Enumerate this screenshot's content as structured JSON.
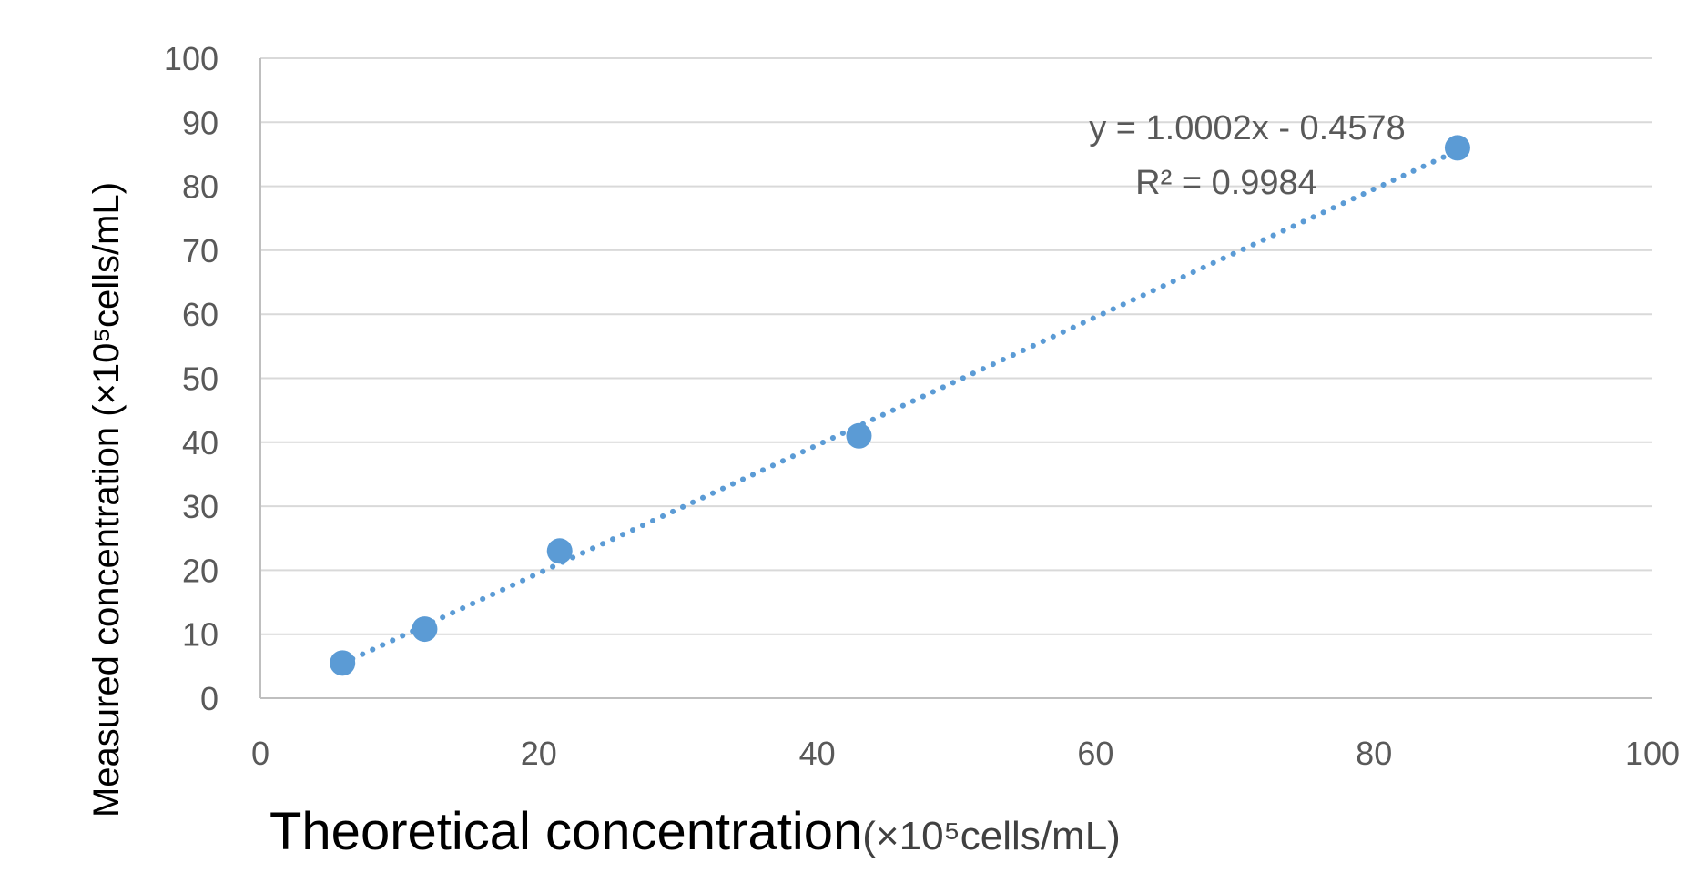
{
  "chart_data": {
    "type": "scatter",
    "title": "",
    "xlabel": "Theoretical concentration",
    "xlabel_unit": "(×10⁵cells/mL)",
    "ylabel": "Measured concentration (×10⁵cells/mL)",
    "xlim": [
      0,
      100
    ],
    "ylim": [
      0,
      100
    ],
    "x_ticks": [
      "0",
      "20",
      "40",
      "60",
      "80",
      "100"
    ],
    "y_ticks": [
      "0",
      "10",
      "20",
      "30",
      "40",
      "50",
      "60",
      "70",
      "80",
      "90",
      "100"
    ],
    "grid": "horizontal",
    "legend": "none",
    "series": [
      {
        "points": [
          {
            "x": 5.9,
            "y": 5.5
          },
          {
            "x": 11.8,
            "y": 10.8
          },
          {
            "x": 21.5,
            "y": 23.0
          },
          {
            "x": 43.0,
            "y": 41.0
          },
          {
            "x": 86.0,
            "y": 86.0
          }
        ],
        "color": "#5b9bd5"
      }
    ],
    "trendline": {
      "type": "linear",
      "slope": 1.0002,
      "intercept": -0.4578,
      "x_range": [
        5.9,
        86.0
      ],
      "style": "dotted",
      "color": "#5b9bd5",
      "equation_label": "y = 1.0002x - 0.4578",
      "r2_label": "R² = 0.9984"
    }
  }
}
